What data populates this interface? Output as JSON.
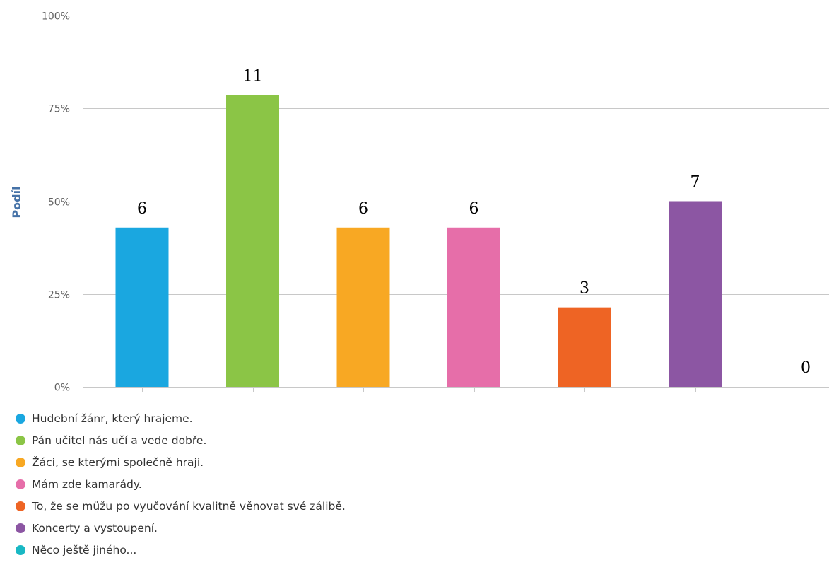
{
  "chart_data": {
    "type": "bar",
    "title": "",
    "xlabel": "",
    "ylabel": "Podíl",
    "ylim": [
      0,
      100
    ],
    "y_ticks": [
      "0%",
      "25%",
      "50%",
      "75%",
      "100%"
    ],
    "y_tick_values": [
      0,
      25,
      50,
      75,
      100
    ],
    "grid": true,
    "legend_position": "bottom-left",
    "categories": [
      "Hudební žánr, který hrajeme.",
      "Pán učitel nás učí a vede dobře.",
      "Žáci, se kterými společně hraji.",
      "Mám zde kamarády.",
      "To, že se můžu po vyučování kvalitně věnovat své zálibě.",
      "Koncerty a vystoupení.",
      "Něco ještě jiného..."
    ],
    "values": [
      42.9,
      78.6,
      42.9,
      42.9,
      21.4,
      50.0,
      0
    ],
    "counts": [
      6,
      11,
      6,
      6,
      3,
      7,
      0
    ],
    "count_labels": [
      "6",
      "11",
      "6",
      "6",
      "3",
      "7",
      "0"
    ],
    "colors": [
      "#1aa7e0",
      "#8bc546",
      "#f8a823",
      "#e66ea9",
      "#ee6424",
      "#8c56a3",
      "#19b8c4"
    ]
  }
}
